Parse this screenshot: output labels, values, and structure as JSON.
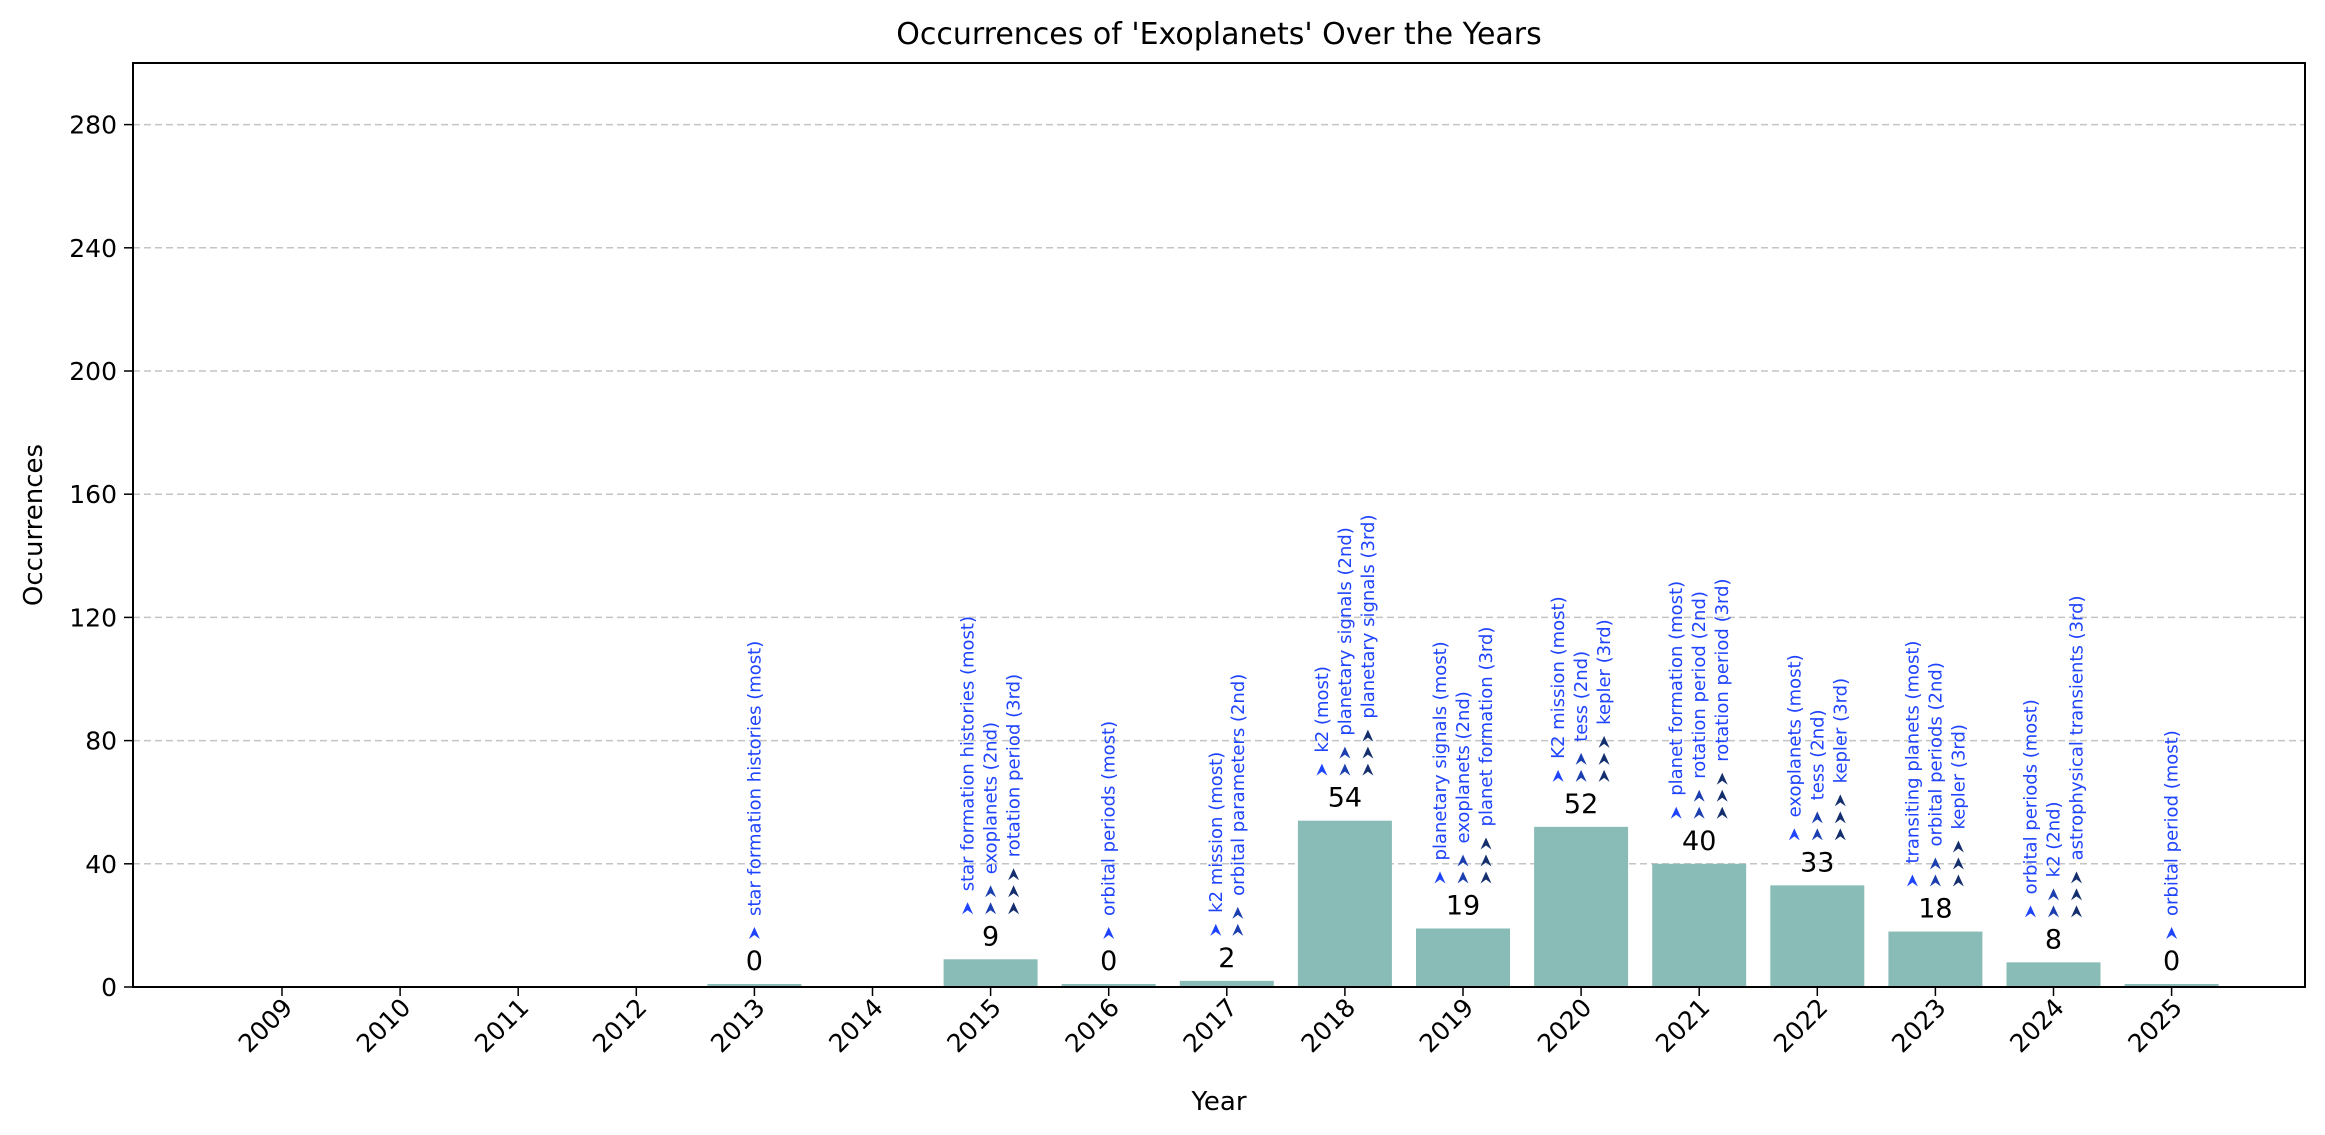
{
  "chart_data": {
    "type": "bar",
    "title": "Occurrences of 'Exoplanets' Over the Years",
    "xlabel": "Year",
    "ylabel": "Occurrences",
    "ylim": [
      0,
      300
    ],
    "yticks": [
      0,
      40,
      80,
      120,
      160,
      200,
      240,
      280
    ],
    "grid": "y-dashed",
    "categories": [
      "2009",
      "2010",
      "2011",
      "2012",
      "2013",
      "2014",
      "2015",
      "2016",
      "2017",
      "2018",
      "2019",
      "2020",
      "2021",
      "2022",
      "2023",
      "2024",
      "2025"
    ],
    "values": [
      null,
      null,
      null,
      null,
      0,
      null,
      9,
      0,
      2,
      54,
      19,
      52,
      40,
      33,
      18,
      8,
      0
    ],
    "value_labels": [
      "",
      "",
      "",
      "",
      "0",
      "",
      "9",
      "0",
      "2",
      "54",
      "19",
      "52",
      "40",
      "33",
      "18",
      "8",
      "0"
    ],
    "annotations": [
      [],
      [],
      [],
      [],
      [
        "star formation histories (most)"
      ],
      [],
      [
        "star formation histories (most)",
        "exoplanets (2nd)",
        "rotation period (3rd)"
      ],
      [
        "orbital periods (most)"
      ],
      [
        "k2 mission (most)",
        "orbital parameters (2nd)"
      ],
      [
        "k2 (most)",
        "planetary signals (2nd)",
        "planetary signals (3rd)"
      ],
      [
        "planetary signals (most)",
        "exoplanets (2nd)",
        "planet formation (3rd)"
      ],
      [
        "K2 mission (most)",
        "tess (2nd)",
        "kepler (3rd)"
      ],
      [
        "planet formation (most)",
        "rotation period (2nd)",
        "rotation period (3rd)"
      ],
      [
        "exoplanets (most)",
        "tess (2nd)",
        "kepler (3rd)"
      ],
      [
        "transiting planets (most)",
        "orbital periods (2nd)",
        "kepler (3rd)"
      ],
      [
        "orbital periods (most)",
        "k2 (2nd)",
        "astrophysical transients (3rd)"
      ],
      [
        "orbital period (most)"
      ]
    ],
    "colors": {
      "bar": "#8abcb7",
      "grid": "#c4c4c4",
      "annotation_text": "#1f44ff",
      "arrow_most": "#1f44ff",
      "arrow_2nd": "#1b3fb0",
      "arrow_3rd": "#152f6e"
    }
  }
}
